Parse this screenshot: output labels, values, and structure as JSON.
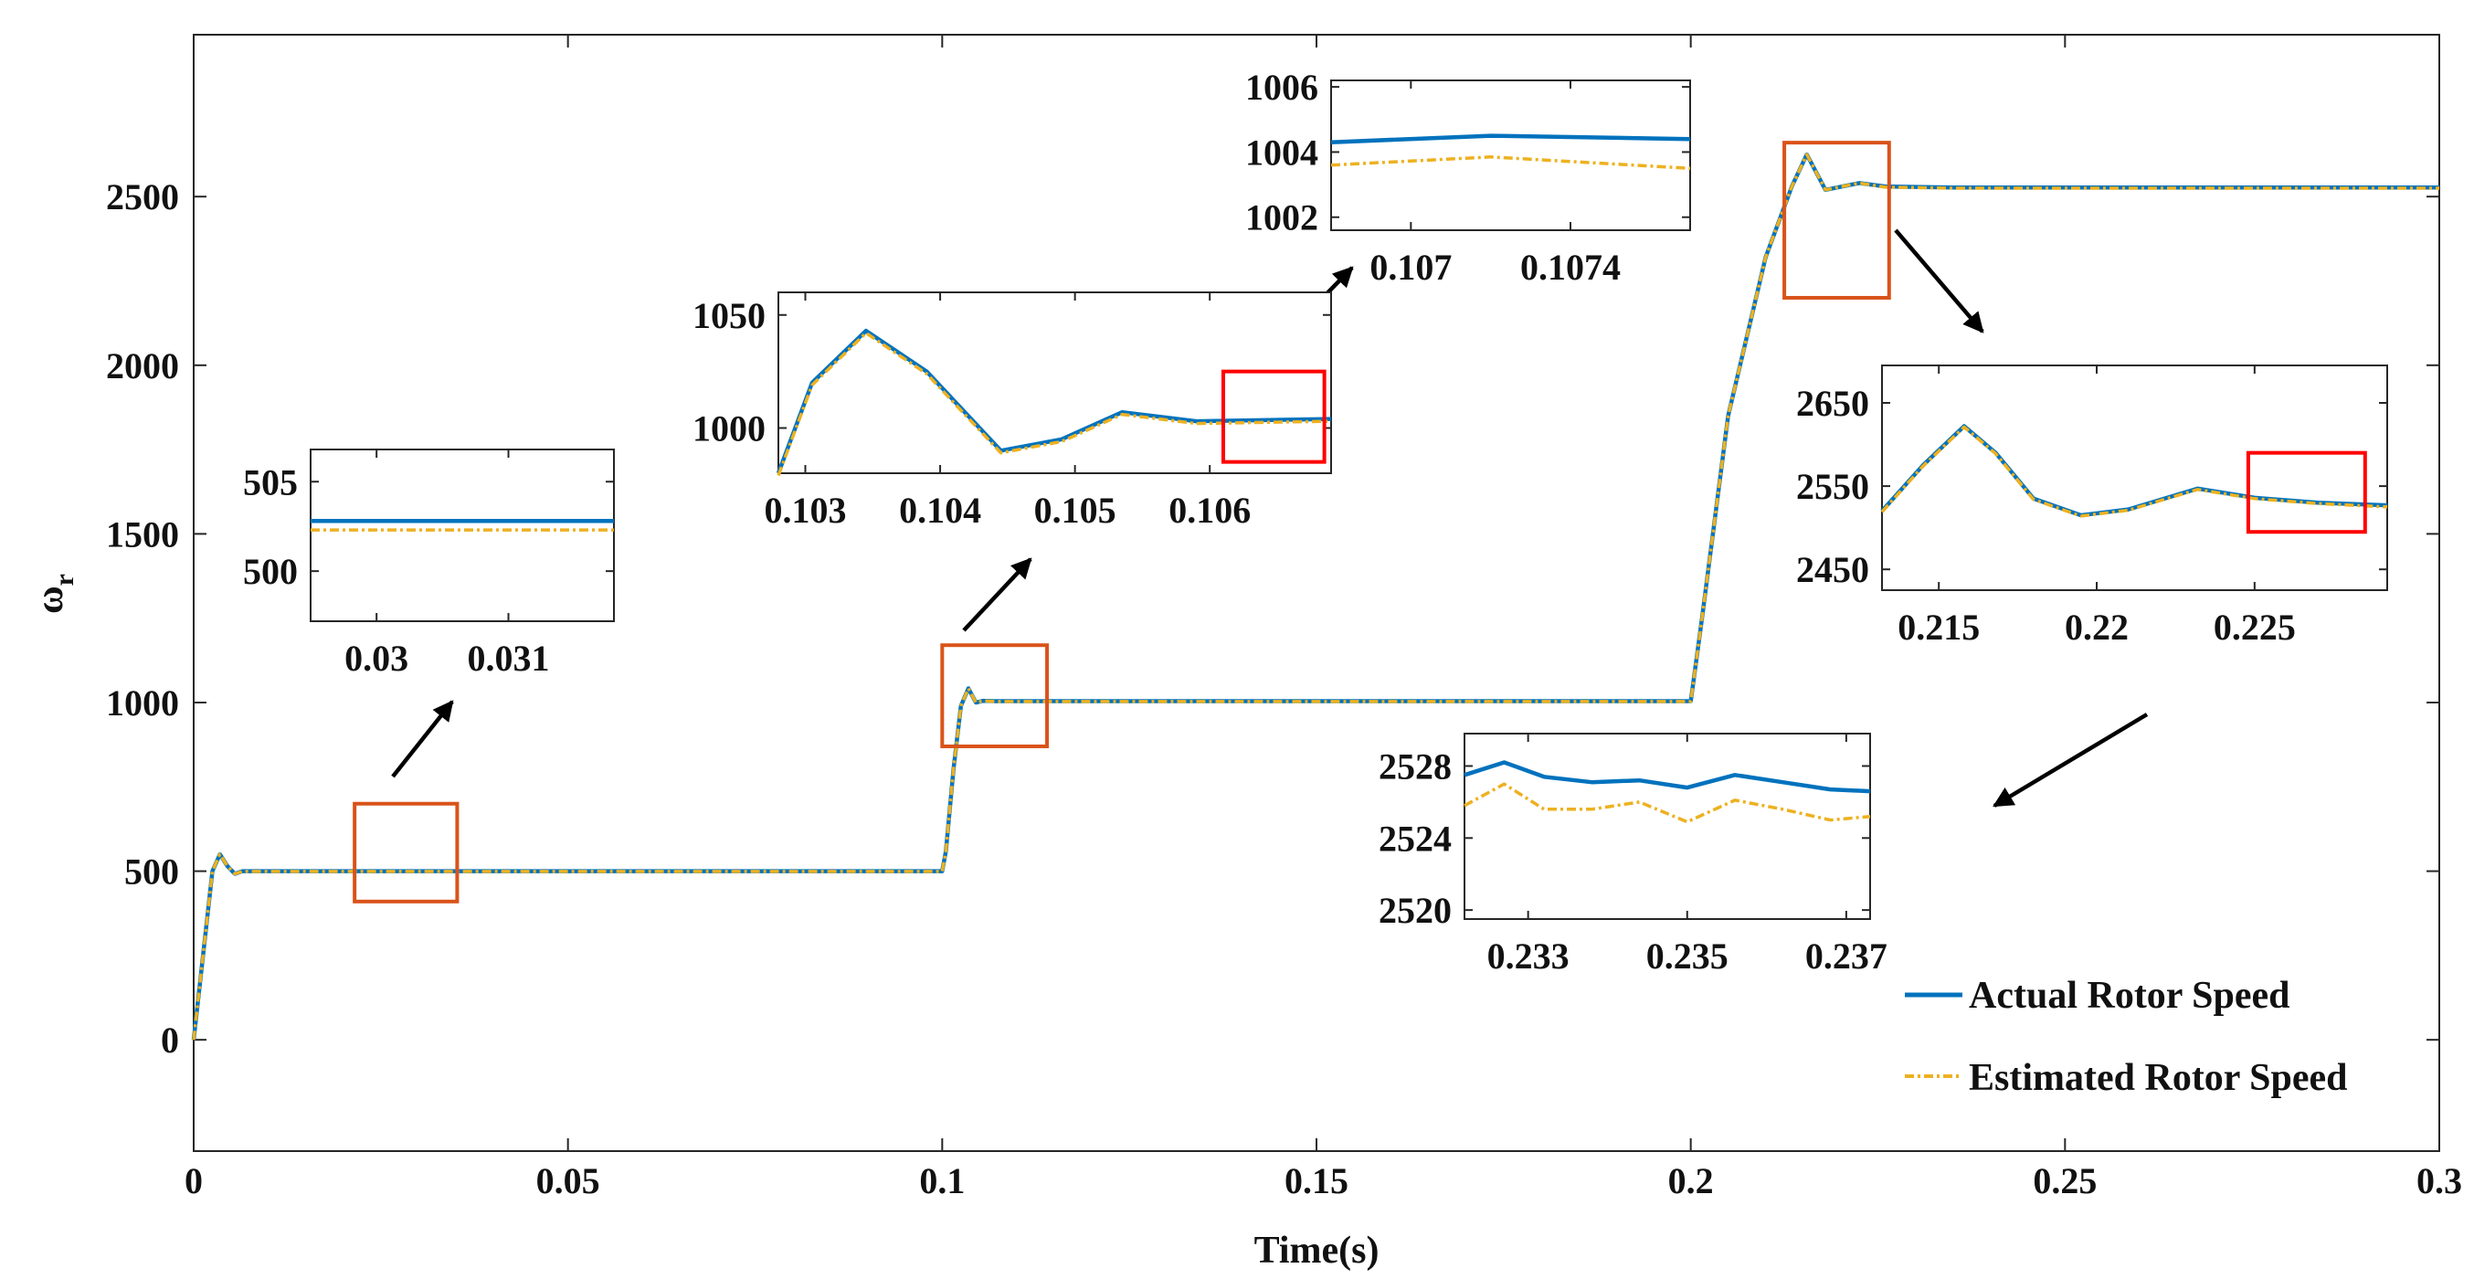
{
  "chart_data": {
    "type": "line",
    "xlabel": "Time(s)",
    "ylabel": "ω",
    "ylabel_sub": "r",
    "xlim": [
      0,
      0.3
    ],
    "ylim": [
      -330,
      2980
    ],
    "xticks": [
      0,
      0.05,
      0.1,
      0.15,
      0.2,
      0.25,
      0.3
    ],
    "xtick_labels": [
      "0",
      "0.05",
      "0.1",
      "0.15",
      "0.2",
      "0.25",
      "0.3"
    ],
    "yticks": [
      0,
      500,
      1000,
      1500,
      2000,
      2500
    ],
    "ytick_labels": [
      "0",
      "500",
      "1000",
      "1500",
      "2000",
      "2500"
    ],
    "legend": {
      "position": "bottom-right",
      "entries": [
        "Actual Rotor Speed",
        "Estimated Rotor Speed"
      ]
    },
    "colors": {
      "actual": "#0072BD",
      "estimated": "#EDB120",
      "zoom_box": "#D95319",
      "detail_box": "#FF0000",
      "arrow": "#000000"
    },
    "series": [
      {
        "name": "Actual Rotor Speed",
        "style": "solid",
        "points": [
          [
            0,
            0
          ],
          [
            0.0015,
            300
          ],
          [
            0.0025,
            500
          ],
          [
            0.0035,
            550
          ],
          [
            0.0045,
            515
          ],
          [
            0.0055,
            492
          ],
          [
            0.0065,
            500
          ],
          [
            0.1,
            500
          ],
          [
            0.1005,
            560
          ],
          [
            0.1015,
            800
          ],
          [
            0.1025,
            990
          ],
          [
            0.1035,
            1042
          ],
          [
            0.1045,
            1000
          ],
          [
            0.1055,
            1005
          ],
          [
            0.107,
            1004
          ],
          [
            0.2,
            1004
          ],
          [
            0.2015,
            1250
          ],
          [
            0.205,
            1850
          ],
          [
            0.21,
            2320
          ],
          [
            0.2135,
            2530
          ],
          [
            0.2155,
            2625
          ],
          [
            0.218,
            2520
          ],
          [
            0.2225,
            2540
          ],
          [
            0.226,
            2530
          ],
          [
            0.235,
            2527
          ],
          [
            0.3,
            2527
          ]
        ]
      },
      {
        "name": "Estimated Rotor Speed",
        "style": "dash-dot",
        "points": [
          [
            0,
            0
          ],
          [
            0.0015,
            300
          ],
          [
            0.0025,
            500
          ],
          [
            0.0035,
            550
          ],
          [
            0.0045,
            515
          ],
          [
            0.0055,
            492
          ],
          [
            0.0065,
            499
          ],
          [
            0.1,
            499
          ],
          [
            0.1005,
            560
          ],
          [
            0.1015,
            800
          ],
          [
            0.1025,
            990
          ],
          [
            0.1035,
            1042
          ],
          [
            0.1045,
            1000
          ],
          [
            0.1055,
            1005
          ],
          [
            0.107,
            1003
          ],
          [
            0.2,
            1003
          ],
          [
            0.2015,
            1250
          ],
          [
            0.205,
            1850
          ],
          [
            0.21,
            2320
          ],
          [
            0.2135,
            2530
          ],
          [
            0.2155,
            2625
          ],
          [
            0.218,
            2520
          ],
          [
            0.2225,
            2540
          ],
          [
            0.226,
            2528
          ],
          [
            0.235,
            2525
          ],
          [
            0.3,
            2525
          ]
        ]
      }
    ],
    "zoom_regions_main": [
      {
        "x": [
          0.0215,
          0.0352
        ],
        "y": [
          410,
          700
        ]
      },
      {
        "x": [
          0.1,
          0.114
        ],
        "y": [
          870,
          1170
        ]
      },
      {
        "x": [
          0.2125,
          0.2265
        ],
        "y": [
          2200,
          2660
        ]
      }
    ],
    "insets": [
      {
        "id": "inset-500",
        "xlim": [
          0.0295,
          0.0318
        ],
        "ylim": [
          497.2,
          506.8
        ],
        "xticks": [
          0.03,
          0.031
        ],
        "xtick_labels": [
          "0.03",
          "0.031"
        ],
        "yticks": [
          500,
          505
        ],
        "ytick_labels": [
          "500",
          "505"
        ],
        "actual": [
          [
            0.0295,
            502.8
          ],
          [
            0.0318,
            502.8
          ]
        ],
        "estimated": [
          [
            0.0295,
            502.3
          ],
          [
            0.0318,
            502.3
          ]
        ]
      },
      {
        "id": "inset-1000",
        "xlim": [
          0.1028,
          0.1069
        ],
        "ylim": [
          980,
          1060
        ],
        "xticks": [
          0.103,
          0.104,
          0.105,
          0.106
        ],
        "xtick_labels": [
          "0.103",
          "0.104",
          "0.105",
          "0.106"
        ],
        "yticks": [
          1000,
          1050
        ],
        "ytick_labels": [
          "1000",
          "1050"
        ],
        "actual": [
          [
            0.1028,
            980
          ],
          [
            0.10305,
            1020
          ],
          [
            0.10345,
            1043
          ],
          [
            0.1039,
            1025
          ],
          [
            0.10445,
            990
          ],
          [
            0.1049,
            995
          ],
          [
            0.10535,
            1007
          ],
          [
            0.1059,
            1003
          ],
          [
            0.1069,
            1004
          ]
        ],
        "estimated": [
          [
            0.1028,
            979
          ],
          [
            0.10305,
            1019
          ],
          [
            0.10345,
            1042
          ],
          [
            0.1039,
            1024
          ],
          [
            0.10445,
            989
          ],
          [
            0.1049,
            994
          ],
          [
            0.10535,
            1006
          ],
          [
            0.1059,
            1002
          ],
          [
            0.1069,
            1003
          ]
        ],
        "detail_box": {
          "x": [
            0.1061,
            0.10685
          ],
          "y": [
            985,
            1025
          ]
        }
      },
      {
        "id": "inset-1004",
        "xlim": [
          0.1068,
          0.1077
        ],
        "ylim": [
          1001.6,
          1006.2
        ],
        "xticks": [
          0.107,
          0.1074
        ],
        "xtick_labels": [
          "0.107",
          "0.1074"
        ],
        "yticks": [
          1002,
          1004,
          1006
        ],
        "ytick_labels": [
          "1002",
          "1004",
          "1006"
        ],
        "actual": [
          [
            0.1068,
            1004.3
          ],
          [
            0.1072,
            1004.5
          ],
          [
            0.1077,
            1004.4
          ]
        ],
        "estimated": [
          [
            0.1068,
            1003.6
          ],
          [
            0.1072,
            1003.85
          ],
          [
            0.1077,
            1003.5
          ]
        ]
      },
      {
        "id": "inset-2500",
        "xlim": [
          0.2132,
          0.2292
        ],
        "ylim": [
          2425,
          2695
        ],
        "xticks": [
          0.215,
          0.22,
          0.225
        ],
        "xtick_labels": [
          "0.215",
          "0.22",
          "0.225"
        ],
        "yticks": [
          2450,
          2550,
          2650
        ],
        "ytick_labels": [
          "2450",
          "2550",
          "2650"
        ],
        "actual": [
          [
            0.2132,
            2520
          ],
          [
            0.2145,
            2575
          ],
          [
            0.2158,
            2622
          ],
          [
            0.2168,
            2590
          ],
          [
            0.218,
            2535
          ],
          [
            0.2195,
            2515
          ],
          [
            0.221,
            2522
          ],
          [
            0.2232,
            2547
          ],
          [
            0.225,
            2536
          ],
          [
            0.227,
            2530
          ],
          [
            0.2292,
            2527
          ]
        ],
        "estimated": [
          [
            0.2132,
            2519
          ],
          [
            0.2145,
            2574
          ],
          [
            0.2158,
            2621
          ],
          [
            0.2168,
            2589
          ],
          [
            0.218,
            2534
          ],
          [
            0.2195,
            2514
          ],
          [
            0.221,
            2521
          ],
          [
            0.2232,
            2546
          ],
          [
            0.225,
            2535
          ],
          [
            0.227,
            2529
          ],
          [
            0.2292,
            2525
          ]
        ],
        "detail_box": {
          "x": [
            0.2248,
            0.2285
          ],
          "y": [
            2495,
            2590
          ]
        }
      },
      {
        "id": "inset-2528",
        "xlim": [
          0.2322,
          0.2373
        ],
        "ylim": [
          2519.5,
          2529.8
        ],
        "xticks": [
          0.233,
          0.235,
          0.237
        ],
        "xtick_labels": [
          "0.233",
          "0.235",
          "0.237"
        ],
        "yticks": [
          2520,
          2524,
          2528
        ],
        "ytick_labels": [
          "2520",
          "2524",
          "2528"
        ],
        "actual": [
          [
            0.2322,
            2527.5
          ],
          [
            0.2327,
            2528.2
          ],
          [
            0.2332,
            2527.4
          ],
          [
            0.2338,
            2527.1
          ],
          [
            0.2344,
            2527.2
          ],
          [
            0.235,
            2526.8
          ],
          [
            0.2356,
            2527.5
          ],
          [
            0.2362,
            2527.1
          ],
          [
            0.2368,
            2526.7
          ],
          [
            0.2373,
            2526.6
          ]
        ],
        "estimated": [
          [
            0.2322,
            2525.8
          ],
          [
            0.2327,
            2527.0
          ],
          [
            0.2332,
            2525.6
          ],
          [
            0.2338,
            2525.6
          ],
          [
            0.2344,
            2526.0
          ],
          [
            0.235,
            2524.9
          ],
          [
            0.2356,
            2526.1
          ],
          [
            0.2362,
            2525.6
          ],
          [
            0.2368,
            2525.0
          ],
          [
            0.2373,
            2525.2
          ]
        ]
      }
    ]
  }
}
